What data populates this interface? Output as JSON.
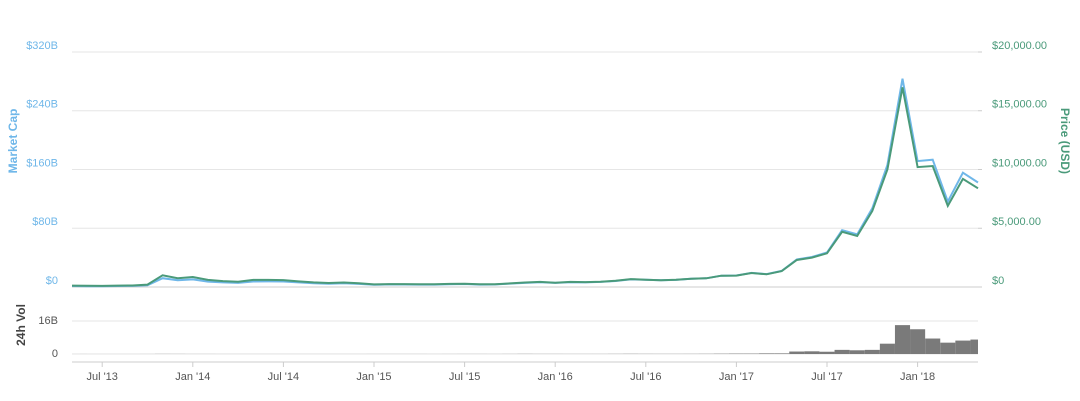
{
  "chart_data": [
    {
      "type": "line",
      "x": [
        "2013-05",
        "2013-06",
        "2013-07",
        "2013-08",
        "2013-09",
        "2013-10",
        "2013-11",
        "2013-12",
        "2014-01",
        "2014-02",
        "2014-03",
        "2014-04",
        "2014-05",
        "2014-06",
        "2014-07",
        "2014-08",
        "2014-09",
        "2014-10",
        "2014-11",
        "2014-12",
        "2015-01",
        "2015-02",
        "2015-03",
        "2015-04",
        "2015-05",
        "2015-06",
        "2015-07",
        "2015-08",
        "2015-09",
        "2015-10",
        "2015-11",
        "2015-12",
        "2016-01",
        "2016-02",
        "2016-03",
        "2016-04",
        "2016-05",
        "2016-06",
        "2016-07",
        "2016-08",
        "2016-09",
        "2016-10",
        "2016-11",
        "2016-12",
        "2017-01",
        "2017-02",
        "2017-03",
        "2017-04",
        "2017-05",
        "2017-06",
        "2017-07",
        "2017-08",
        "2017-09",
        "2017-10",
        "2017-11",
        "2017-12",
        "2018-01",
        "2018-02",
        "2018-03",
        "2018-04",
        "2018-05"
      ],
      "xlim": [
        "2013-05",
        "2018-05"
      ],
      "ylabel": "Market Cap",
      "y2label": "Price (USD)",
      "ylim": [
        0,
        320
      ],
      "yticks": [
        {
          "value": 0,
          "label": "$0"
        },
        {
          "value": 80,
          "label": "$80B"
        },
        {
          "value": 160,
          "label": "$160B"
        },
        {
          "value": 240,
          "label": "$240B"
        },
        {
          "value": 320,
          "label": "$320B"
        }
      ],
      "y2lim": [
        0,
        20000
      ],
      "y2ticks": [
        {
          "value": 0,
          "label": "$0"
        },
        {
          "value": 5000,
          "label": "$5,000.00"
        },
        {
          "value": 10000,
          "label": "$10,000.00"
        },
        {
          "value": 15000,
          "label": "$15,000.00"
        },
        {
          "value": 20000,
          "label": "$20,000.00"
        }
      ],
      "grid": true,
      "series": [
        {
          "name": "Market Cap",
          "color": "#6fb7e9",
          "axis": "y",
          "values": [
            1.3,
            1.1,
            1.1,
            1.4,
            1.5,
            2.4,
            12.0,
            9.1,
            10.4,
            7.4,
            6.2,
            5.6,
            7.5,
            7.6,
            7.5,
            6.2,
            5.1,
            4.4,
            5.0,
            4.2,
            3.0,
            3.5,
            3.4,
            3.3,
            3.2,
            3.7,
            4.1,
            3.3,
            3.4,
            4.6,
            5.6,
            6.4,
            5.6,
            6.6,
            6.3,
            6.9,
            8.2,
            10.4,
            9.8,
            9.1,
            9.7,
            11.2,
            11.9,
            15.4,
            15.6,
            19.2,
            17.5,
            21.9,
            37.4,
            40.8,
            47.0,
            77.3,
            71.6,
            107.1,
            166.3,
            283.6,
            171.4,
            173.4,
            116.3,
            155.6,
            142.3
          ]
        },
        {
          "name": "Price (USD)",
          "color": "#4a9a7a",
          "axis": "y2",
          "values": [
            120,
            100,
            95,
            120,
            130,
            200,
            1000,
            750,
            850,
            600,
            500,
            450,
            600,
            600,
            590,
            480,
            390,
            340,
            380,
            320,
            220,
            250,
            245,
            235,
            230,
            260,
            285,
            230,
            235,
            310,
            380,
            430,
            370,
            435,
            415,
            450,
            530,
            670,
            625,
            575,
            610,
            700,
            740,
            960,
            970,
            1190,
            1080,
            1350,
            2300,
            2500,
            2870,
            4700,
            4340,
            6470,
            10000,
            17000,
            10200,
            10300,
            6900,
            9200,
            8400
          ]
        }
      ]
    },
    {
      "type": "bar",
      "x": [
        "2013-05",
        "2013-06",
        "2013-07",
        "2013-08",
        "2013-09",
        "2013-10",
        "2013-11",
        "2013-12",
        "2014-01",
        "2014-02",
        "2014-03",
        "2014-04",
        "2014-05",
        "2014-06",
        "2014-07",
        "2014-08",
        "2014-09",
        "2014-10",
        "2014-11",
        "2014-12",
        "2015-01",
        "2015-02",
        "2015-03",
        "2015-04",
        "2015-05",
        "2015-06",
        "2015-07",
        "2015-08",
        "2015-09",
        "2015-10",
        "2015-11",
        "2015-12",
        "2016-01",
        "2016-02",
        "2016-03",
        "2016-04",
        "2016-05",
        "2016-06",
        "2016-07",
        "2016-08",
        "2016-09",
        "2016-10",
        "2016-11",
        "2016-12",
        "2017-01",
        "2017-02",
        "2017-03",
        "2017-04",
        "2017-05",
        "2017-06",
        "2017-07",
        "2017-08",
        "2017-09",
        "2017-10",
        "2017-11",
        "2017-12",
        "2018-01",
        "2018-02",
        "2018-03",
        "2018-04",
        "2018-05"
      ],
      "xlim": [
        "2013-05",
        "2018-05"
      ],
      "xticks": [
        {
          "value": "2013-07",
          "label": "Jul '13"
        },
        {
          "value": "2014-01",
          "label": "Jan '14"
        },
        {
          "value": "2014-07",
          "label": "Jul '14"
        },
        {
          "value": "2015-01",
          "label": "Jan '15"
        },
        {
          "value": "2015-07",
          "label": "Jul '15"
        },
        {
          "value": "2016-01",
          "label": "Jan '16"
        },
        {
          "value": "2016-07",
          "label": "Jul '16"
        },
        {
          "value": "2017-01",
          "label": "Jan '17"
        },
        {
          "value": "2017-07",
          "label": "Jul '17"
        },
        {
          "value": "2018-01",
          "label": "Jan '18"
        }
      ],
      "ylabel": "24h Vol",
      "ylim": [
        0,
        26
      ],
      "yticks": [
        0,
        {
          "value": 16,
          "label": "16B"
        }
      ],
      "grid": true,
      "color": "#7a7a7a",
      "values": [
        0.01,
        0.01,
        0.01,
        0.01,
        0.01,
        0.02,
        0.06,
        0.05,
        0.03,
        0.03,
        0.02,
        0.02,
        0.02,
        0.02,
        0.02,
        0.02,
        0.02,
        0.02,
        0.02,
        0.02,
        0.03,
        0.03,
        0.03,
        0.03,
        0.02,
        0.03,
        0.04,
        0.04,
        0.03,
        0.05,
        0.08,
        0.06,
        0.06,
        0.05,
        0.05,
        0.05,
        0.07,
        0.1,
        0.08,
        0.07,
        0.07,
        0.08,
        0.1,
        0.15,
        0.2,
        0.2,
        0.3,
        0.3,
        1.2,
        1.3,
        1.1,
        2.0,
        1.8,
        2.0,
        5.0,
        14,
        12,
        7.5,
        5.5,
        6.5,
        7
      ]
    }
  ]
}
